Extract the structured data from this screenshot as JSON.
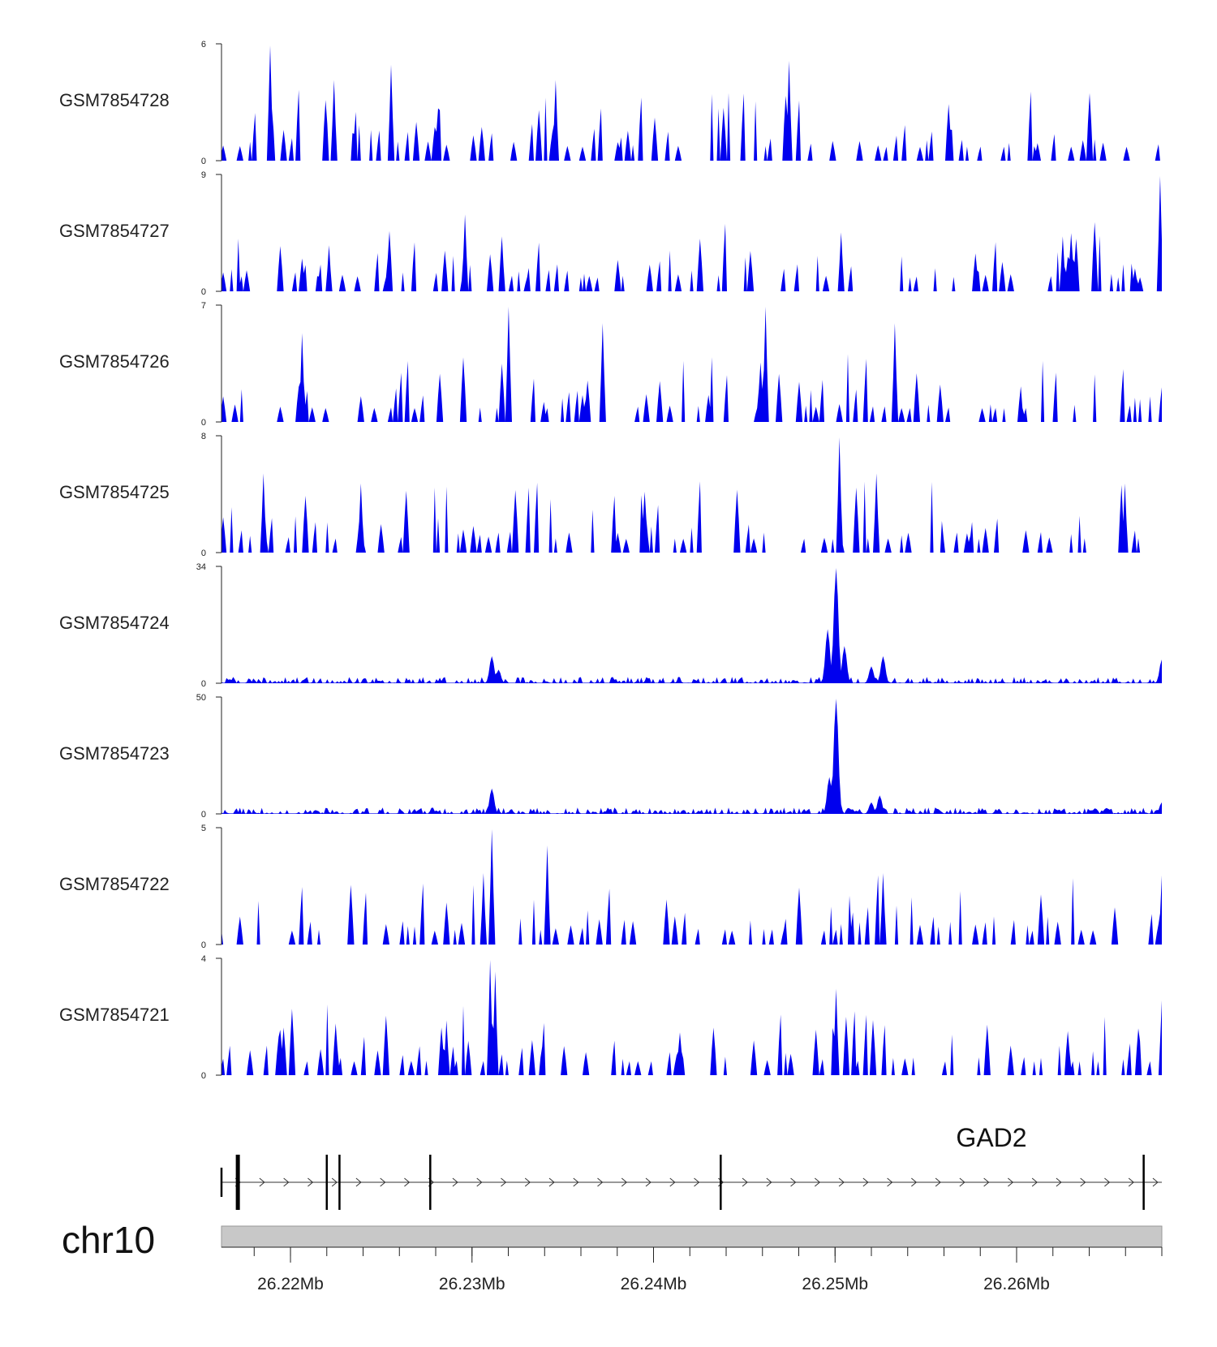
{
  "chart_data": {
    "type": "area",
    "title": "",
    "region": {
      "chromosome": "chr10",
      "start": 26.2162,
      "end": 26.268,
      "units": "Mb"
    },
    "colors": {
      "signal": "#0000ee",
      "ideogram": "#c8c8c8",
      "axis": "#222222"
    },
    "tracks": [
      {
        "name": "GSM7854728",
        "ymax": 6,
        "ymin": 0,
        "ymax_label": "6",
        "ymin_label": "0",
        "seed": 7281,
        "style": "spiky",
        "peaks": [
          [
            26.2189,
            6.0
          ],
          [
            26.2255,
            5.0
          ],
          [
            26.2346,
            4.2
          ],
          [
            26.2475,
            5.2
          ],
          [
            26.2224,
            4.2
          ]
        ]
      },
      {
        "name": "GSM7854727",
        "ymax": 9,
        "ymin": 0,
        "ymax_label": "9",
        "ymin_label": "0",
        "seed": 7271,
        "style": "spiky",
        "peaks": [
          [
            26.2296,
            6.0
          ],
          [
            26.2625,
            4.3
          ],
          [
            26.2679,
            9.0
          ],
          [
            26.2503,
            4.6
          ],
          [
            26.2221,
            3.6
          ]
        ]
      },
      {
        "name": "GSM7854726",
        "ymax": 7,
        "ymin": 0,
        "ymax_label": "7",
        "ymin_label": "0",
        "seed": 7261,
        "style": "spiky",
        "peaks": [
          [
            26.232,
            7.0
          ],
          [
            26.2462,
            7.0
          ],
          [
            26.2372,
            6.0
          ],
          [
            26.2533,
            6.0
          ],
          [
            26.2206,
            5.4
          ]
        ]
      },
      {
        "name": "GSM7854725",
        "ymax": 8,
        "ymin": 0,
        "ymax_label": "8",
        "ymin_label": "0",
        "seed": 7251,
        "style": "spiky",
        "peaks": [
          [
            26.2502,
            8.0
          ],
          [
            26.2185,
            5.5
          ],
          [
            26.2239,
            4.8
          ],
          [
            26.2523,
            5.5
          ],
          [
            26.266,
            4.8
          ]
        ]
      },
      {
        "name": "GSM7854724",
        "ymax": 34,
        "ymin": 0,
        "ymax_label": "34",
        "ymin_label": "0",
        "seed": 7241,
        "style": "broad",
        "peaks": [
          [
            26.2501,
            34
          ],
          [
            26.2496,
            16
          ],
          [
            26.2505,
            11
          ],
          [
            26.2526,
            8
          ],
          [
            26.252,
            5
          ],
          [
            26.2311,
            8
          ],
          [
            26.2315,
            4
          ],
          [
            26.268,
            7
          ]
        ]
      },
      {
        "name": "GSM7854723",
        "ymax": 50,
        "ymin": 0,
        "ymax_label": "50",
        "ymin_label": "0",
        "seed": 7231,
        "style": "broad",
        "peaks": [
          [
            26.2501,
            50
          ],
          [
            26.2497,
            16
          ],
          [
            26.2525,
            8
          ],
          [
            26.252,
            5
          ],
          [
            26.2311,
            11
          ],
          [
            26.268,
            5
          ]
        ]
      },
      {
        "name": "GSM7854722",
        "ymax": 5,
        "ymin": 0,
        "ymax_label": "5",
        "ymin_label": "0",
        "seed": 7221,
        "style": "spiky",
        "peaks": [
          [
            26.2311,
            5.0
          ],
          [
            26.2341,
            4.3
          ],
          [
            26.2306,
            3.1
          ],
          [
            26.2526,
            3.1
          ],
          [
            26.268,
            3.0
          ]
        ]
      },
      {
        "name": "GSM7854721",
        "ymax": 4,
        "ymin": 0,
        "ymax_label": "4",
        "ymin_label": "0",
        "seed": 7211,
        "style": "spiky",
        "peaks": [
          [
            26.231,
            4.0
          ],
          [
            26.2313,
            3.6
          ],
          [
            26.2501,
            3.0
          ],
          [
            26.2286,
            1.9
          ],
          [
            26.268,
            2.6
          ]
        ]
      }
    ],
    "gene": {
      "name": "GAD2",
      "strand": "+",
      "start": 26.2162,
      "end": 26.268,
      "exons": [
        26.2162,
        26.2171,
        26.222,
        26.2227,
        26.2277,
        26.2437,
        26.267
      ]
    },
    "xaxis": {
      "ticks": [
        26.22,
        26.23,
        26.24,
        26.25,
        26.26
      ],
      "tick_labels": [
        "26.22Mb",
        "26.23Mb",
        "26.24Mb",
        "26.25Mb",
        "26.26Mb"
      ],
      "minor_step": 0.002
    }
  }
}
